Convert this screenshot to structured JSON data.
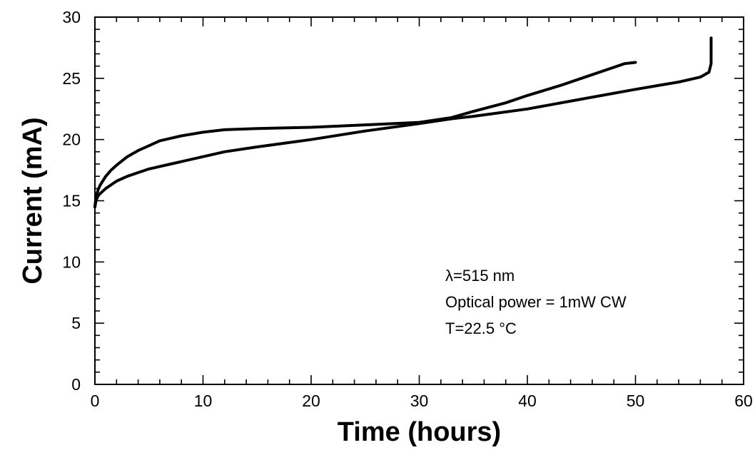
{
  "chart_data": {
    "type": "line",
    "title": "",
    "xlabel": "Time (hours)",
    "ylabel": "Current (mA)",
    "xlim": [
      0,
      60
    ],
    "ylim": [
      0,
      30
    ],
    "x_ticks": [
      0,
      10,
      20,
      30,
      40,
      50,
      60
    ],
    "y_ticks": [
      0,
      5,
      10,
      15,
      20,
      25,
      30
    ],
    "x_minor_step": 2,
    "y_minor_step": 1,
    "grid": false,
    "legend": null,
    "annotations": [
      "λ=515 nm",
      "Optical power = 1mW CW",
      "T=22.5 °C"
    ],
    "series": [
      {
        "x": [
          0,
          0.1,
          0.3,
          0.5,
          1,
          1.5,
          2,
          3,
          4,
          5,
          6,
          7,
          8,
          10,
          12,
          15,
          20,
          25,
          30,
          33,
          35,
          38,
          40,
          43,
          46,
          48,
          49,
          50
        ],
        "y": [
          14.5,
          15.3,
          15.9,
          16.3,
          17.0,
          17.5,
          17.9,
          18.6,
          19.1,
          19.5,
          19.9,
          20.1,
          20.3,
          20.6,
          20.8,
          20.9,
          21.0,
          21.2,
          21.4,
          21.8,
          22.3,
          23.0,
          23.6,
          24.4,
          25.3,
          25.9,
          26.2,
          26.3
        ]
      },
      {
        "x": [
          0,
          0.1,
          0.3,
          0.5,
          1,
          2,
          3,
          4,
          5,
          7,
          10,
          12,
          15,
          20,
          25,
          30,
          33,
          35,
          40,
          45,
          50,
          52,
          54,
          55,
          56,
          56.8,
          57,
          57,
          57
        ],
        "y": [
          14.5,
          15.0,
          15.4,
          15.6,
          16.0,
          16.6,
          17.0,
          17.3,
          17.6,
          18.0,
          18.6,
          19.0,
          19.4,
          20.0,
          20.7,
          21.3,
          21.7,
          21.9,
          22.5,
          23.3,
          24.1,
          24.4,
          24.7,
          24.9,
          25.1,
          25.5,
          26.2,
          27.5,
          28.3
        ]
      }
    ]
  }
}
